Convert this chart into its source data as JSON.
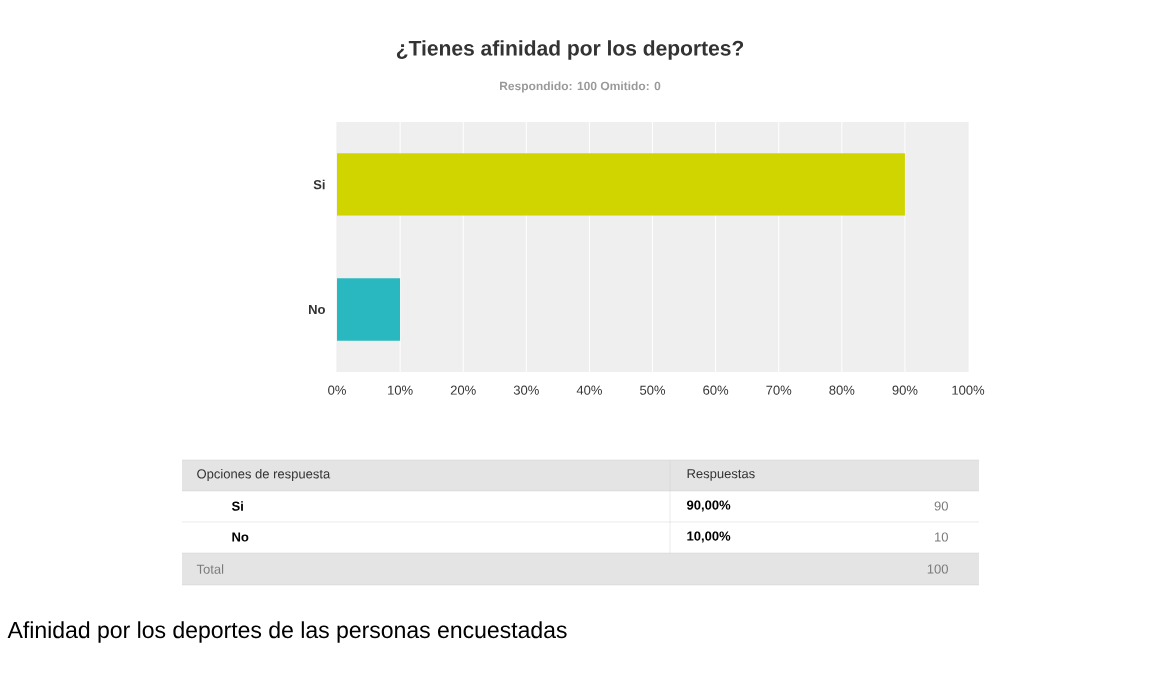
{
  "chart_data": {
    "type": "bar",
    "title": "¿Tienes afinidad por los deportes?",
    "subtitle": "Respondido: 100    Omitido: 0",
    "orientation": "horizontal",
    "categories": [
      "Si",
      "No"
    ],
    "values": [
      90,
      10
    ],
    "colors": [
      "#d0d500",
      "#2ab8c0"
    ],
    "xlim": [
      0,
      100
    ],
    "xticks": [
      {
        "value": 0,
        "label": "0%"
      },
      {
        "value": 10,
        "label": "10%"
      },
      {
        "value": 20,
        "label": "20%"
      },
      {
        "value": 30,
        "label": "30%"
      },
      {
        "value": 40,
        "label": "40%"
      },
      {
        "value": 50,
        "label": "50%"
      },
      {
        "value": 60,
        "label": "60%"
      },
      {
        "value": 70,
        "label": "70%"
      },
      {
        "value": 80,
        "label": "80%"
      },
      {
        "value": 90,
        "label": "90%"
      },
      {
        "value": 100,
        "label": "100%"
      }
    ],
    "grid": "x",
    "annotations": [
      "Opciones de respuesta",
      "Respuestas",
      "90,00%",
      "90",
      "10,00%",
      "10",
      "Total",
      "100",
      "Afinidad por los deportes de las personas encuestadas"
    ]
  }
}
